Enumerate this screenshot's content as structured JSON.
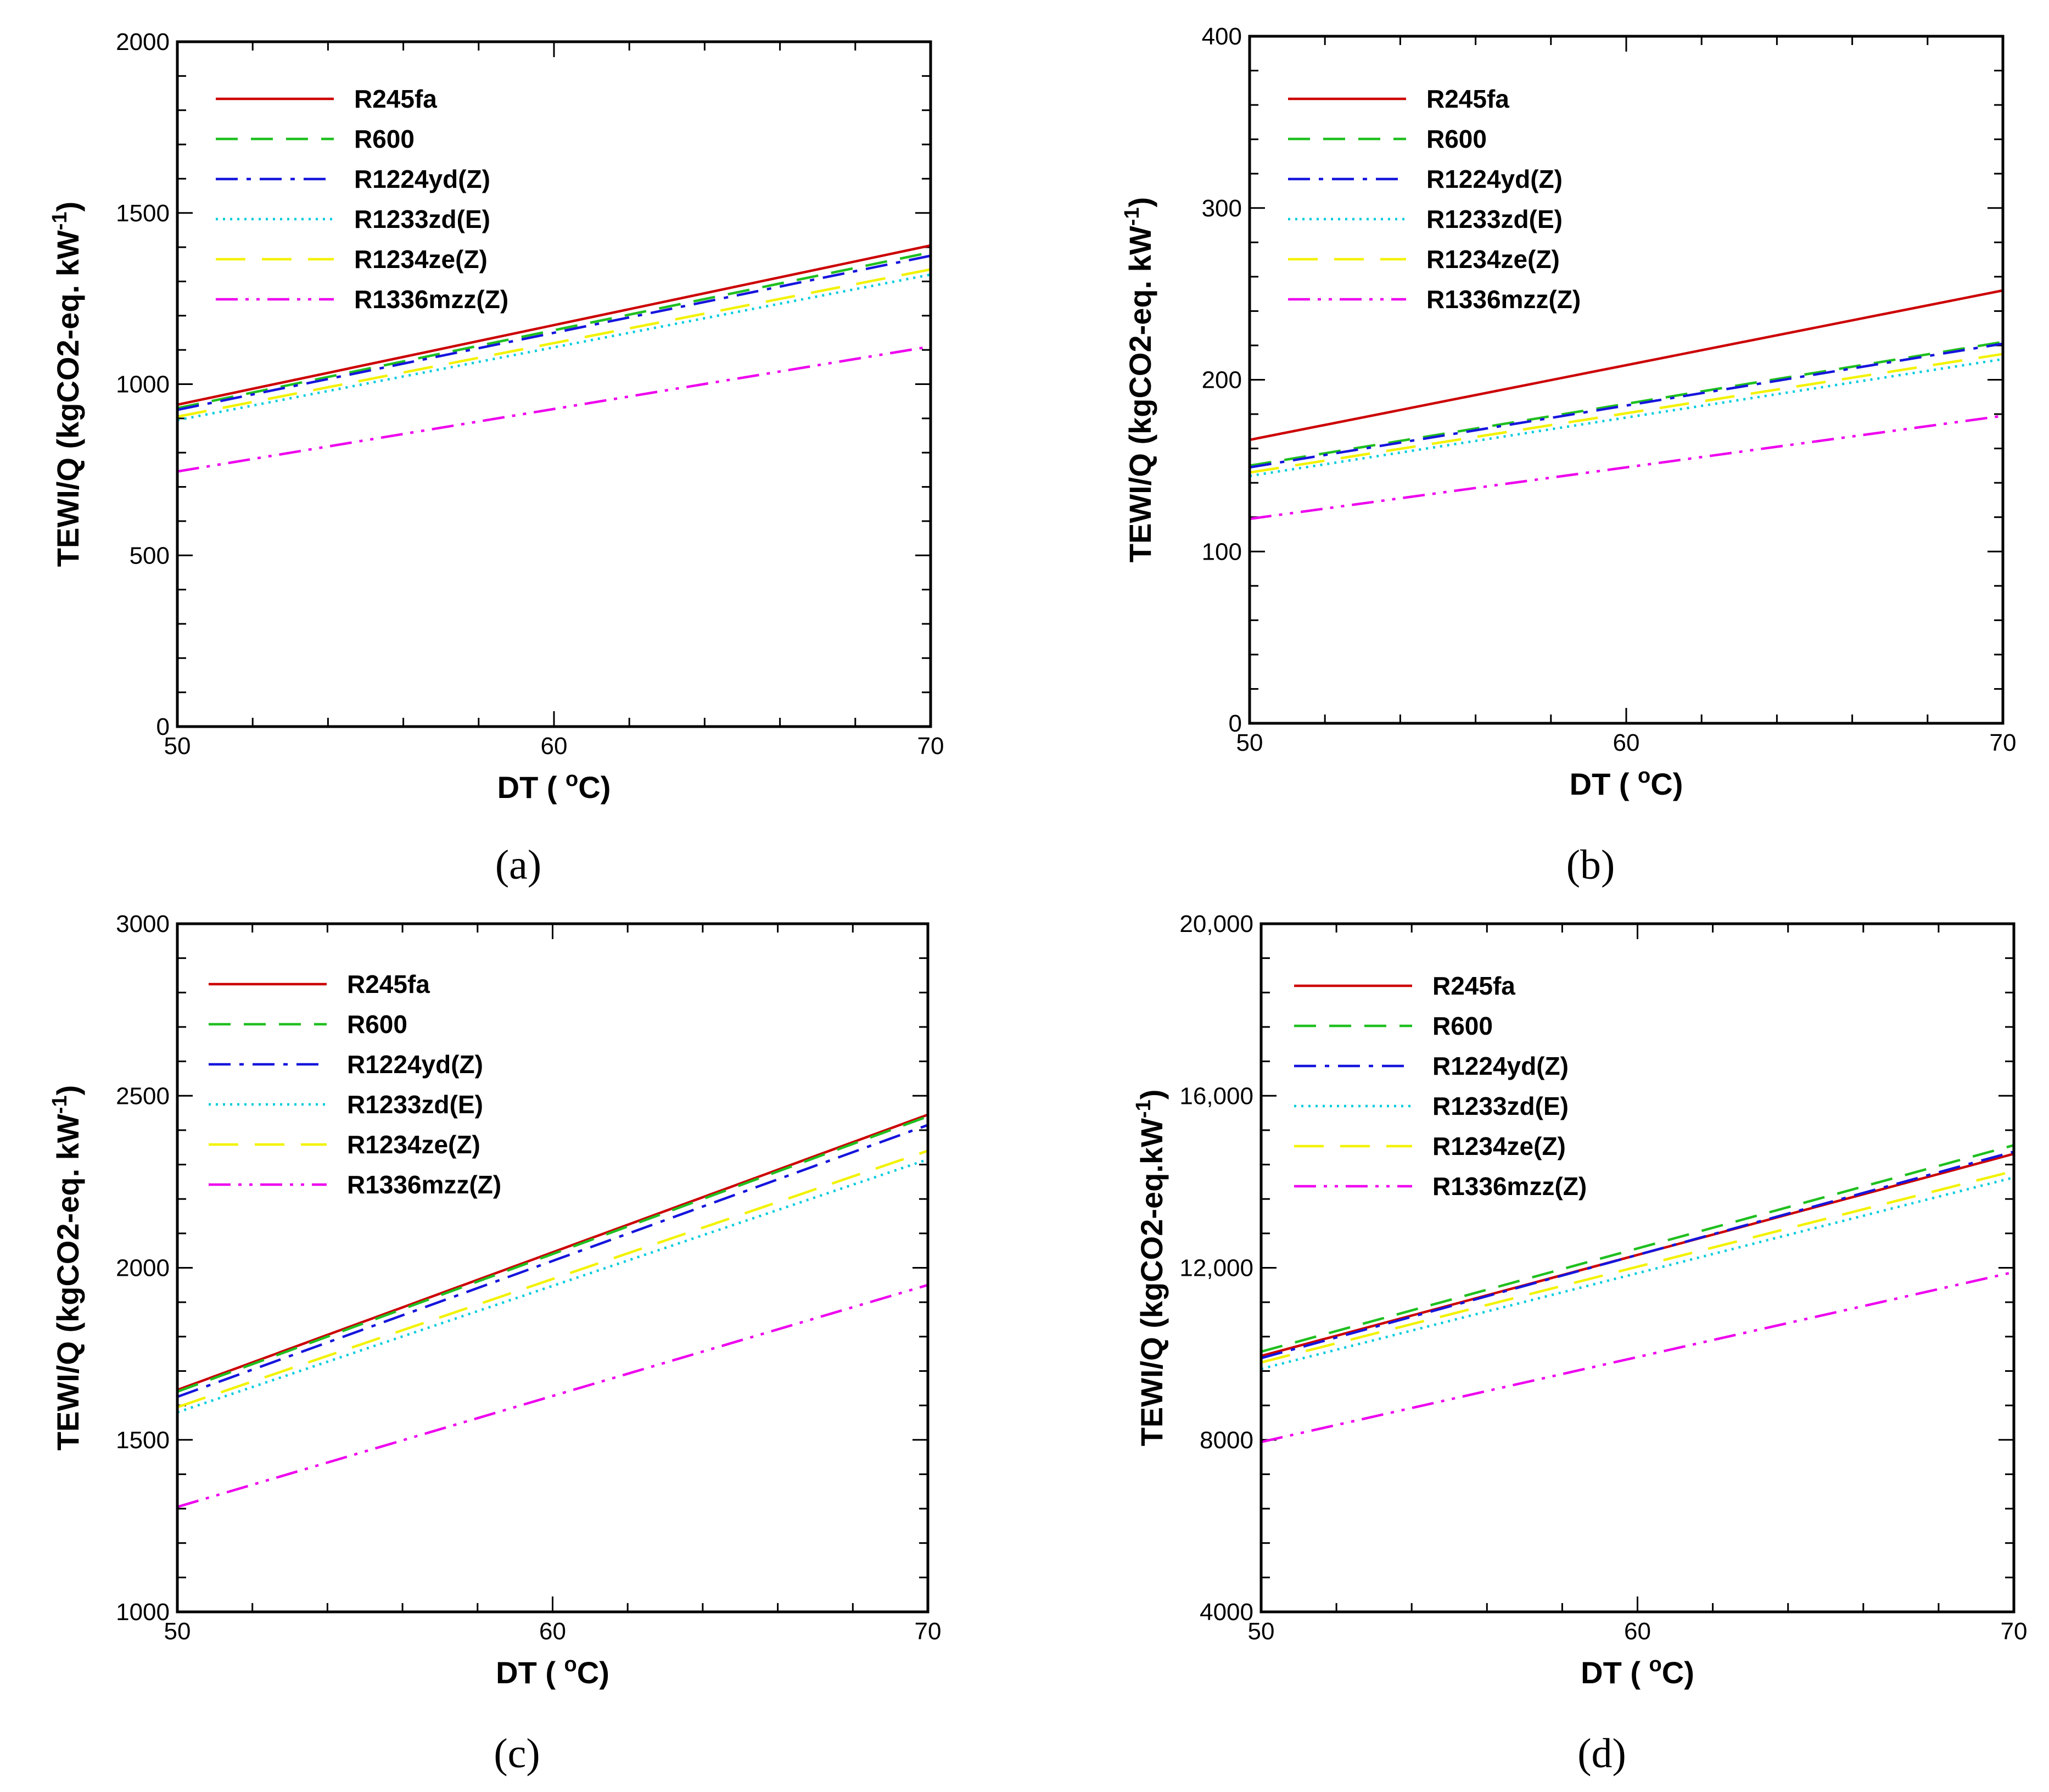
{
  "chart_data": [
    {
      "type": "line",
      "panel": "a",
      "caption": "(a)",
      "xlabel_main": "DT (",
      "xlabel_unit": "C)",
      "xlabel_degree": "o",
      "ylabel_main": "TEWI/Q (kgCO2-eq. kW",
      "ylabel_exp": "-1",
      "ylabel_close": ")",
      "xlim": [
        50,
        70
      ],
      "ylim": [
        0,
        2000
      ],
      "xticks": [
        50,
        60,
        70
      ],
      "yticks": [
        0,
        500,
        1000,
        1500,
        2000
      ],
      "ytick_labels": [
        "0",
        "500",
        "1000",
        "1500",
        "2000"
      ],
      "x": [
        50,
        70
      ],
      "series": [
        {
          "name": "R245fa",
          "values": [
            940,
            1405
          ]
        },
        {
          "name": "R600",
          "values": [
            930,
            1385
          ]
        },
        {
          "name": "R1224yd(Z)",
          "values": [
            925,
            1375
          ]
        },
        {
          "name": "R1233zd(E)",
          "values": [
            895,
            1320
          ]
        },
        {
          "name": "R1234ze(Z)",
          "values": [
            905,
            1335
          ]
        },
        {
          "name": "R1336mzz(Z)",
          "values": [
            745,
            1110
          ]
        }
      ]
    },
    {
      "type": "line",
      "panel": "b",
      "caption": "(b)",
      "xlabel_main": "DT (",
      "xlabel_unit": "C)",
      "xlabel_degree": "o",
      "ylabel_main": "TEWI/Q (kgCO2-eq. kW",
      "ylabel_exp": "-1",
      "ylabel_close": ")",
      "xlim": [
        50,
        70
      ],
      "ylim": [
        0,
        400
      ],
      "xticks": [
        50,
        60,
        70
      ],
      "yticks": [
        0,
        100,
        200,
        300,
        400
      ],
      "ytick_labels": [
        "0",
        "100",
        "200",
        "300",
        "400"
      ],
      "x": [
        50,
        70
      ],
      "series": [
        {
          "name": "R245fa",
          "values": [
            165,
            252
          ]
        },
        {
          "name": "R600",
          "values": [
            150,
            222
          ]
        },
        {
          "name": "R1224yd(Z)",
          "values": [
            149,
            221
          ]
        },
        {
          "name": "R1233zd(E)",
          "values": [
            144,
            212
          ]
        },
        {
          "name": "R1234ze(Z)",
          "values": [
            146,
            215
          ]
        },
        {
          "name": "R1336mzz(Z)",
          "values": [
            119,
            179
          ]
        }
      ]
    },
    {
      "type": "line",
      "panel": "c",
      "caption": "(c)",
      "xlabel_main": "DT (",
      "xlabel_unit": "C)",
      "xlabel_degree": "o",
      "ylabel_main": "TEWI/Q (kgCO2-eq. kW",
      "ylabel_exp": "-1",
      "ylabel_close": ")",
      "xlim": [
        50,
        70
      ],
      "ylim": [
        1000,
        3000
      ],
      "xticks": [
        50,
        60,
        70
      ],
      "yticks": [
        1000,
        1500,
        2000,
        2500,
        3000
      ],
      "ytick_labels": [
        "1000",
        "1500",
        "2000",
        "2500",
        "3000"
      ],
      "x": [
        50,
        70
      ],
      "series": [
        {
          "name": "R245fa",
          "values": [
            1645,
            2445
          ]
        },
        {
          "name": "R600",
          "values": [
            1640,
            2440
          ]
        },
        {
          "name": "R1224yd(Z)",
          "values": [
            1625,
            2415
          ]
        },
        {
          "name": "R1233zd(E)",
          "values": [
            1580,
            2315
          ]
        },
        {
          "name": "R1234ze(Z)",
          "values": [
            1595,
            2340
          ]
        },
        {
          "name": "R1336mzz(Z)",
          "values": [
            1305,
            1950
          ]
        }
      ]
    },
    {
      "type": "line",
      "panel": "d",
      "caption": "(d)",
      "xlabel_main": "DT (",
      "xlabel_unit": "C)",
      "xlabel_degree": "o",
      "ylabel_main": "TEWI/Q (kgCO2-eq.kW",
      "ylabel_exp": "-1",
      "ylabel_close": ")",
      "xlim": [
        50,
        70
      ],
      "ylim": [
        4000,
        20000
      ],
      "xticks": [
        50,
        60,
        70
      ],
      "yticks": [
        4000,
        8000,
        12000,
        16000,
        20000
      ],
      "ytick_labels": [
        "4000",
        "8000",
        "12,000",
        "16,000",
        "20,000"
      ],
      "x": [
        50,
        70
      ],
      "series": [
        {
          "name": "R245fa",
          "values": [
            9950,
            14650
          ]
        },
        {
          "name": "R600",
          "values": [
            10050,
            14850
          ]
        },
        {
          "name": "R1224yd(Z)",
          "values": [
            9900,
            14700
          ]
        },
        {
          "name": "R1233zd(E)",
          "values": [
            9650,
            14100
          ]
        },
        {
          "name": "R1234ze(Z)",
          "values": [
            9800,
            14250
          ]
        },
        {
          "name": "R1336mzz(Z)",
          "values": [
            7950,
            11900
          ]
        }
      ]
    }
  ],
  "series_styles": [
    {
      "name": "R245fa",
      "color": "#cc0000",
      "dash": "solid"
    },
    {
      "name": "R600",
      "color": "#1fbf1f",
      "dash": "dash"
    },
    {
      "name": "R1224yd(Z)",
      "color": "#1515dd",
      "dash": "dashdot"
    },
    {
      "name": "R1233zd(E)",
      "color": "#00ccdd",
      "dash": "dot"
    },
    {
      "name": "R1234ze(Z)",
      "color": "#f2f200",
      "dash": "longdash"
    },
    {
      "name": "R1336mzz(Z)",
      "color": "#ee00ee",
      "dash": "dashdotdot"
    }
  ]
}
